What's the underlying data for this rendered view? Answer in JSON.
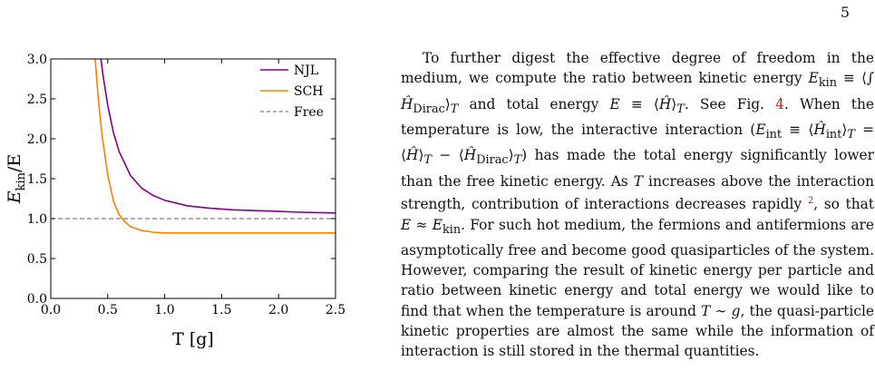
{
  "page": {
    "number": "5"
  },
  "chart_data": {
    "type": "line",
    "xlabel": "T [g]",
    "ylabel": "E_kin/E",
    "xlim": [
      0.0,
      2.5
    ],
    "ylim": [
      0.0,
      3.0
    ],
    "xticks": [
      "0.0",
      "0.5",
      "1.0",
      "1.5",
      "2.0",
      "2.5"
    ],
    "yticks": [
      "0.0",
      "0.5",
      "1.0",
      "1.5",
      "2.0",
      "2.5",
      "3.0"
    ],
    "legend_position": "top-right",
    "series": [
      {
        "name": "NJL",
        "color": "#800080",
        "style": "solid",
        "x": [
          0.44,
          0.46,
          0.5,
          0.55,
          0.6,
          0.7,
          0.8,
          0.9,
          1.0,
          1.2,
          1.4,
          1.6,
          1.8,
          2.0,
          2.2,
          2.5
        ],
        "y": [
          3.0,
          2.78,
          2.42,
          2.08,
          1.84,
          1.54,
          1.38,
          1.29,
          1.23,
          1.16,
          1.13,
          1.11,
          1.1,
          1.09,
          1.08,
          1.07
        ]
      },
      {
        "name": "SCH",
        "color": "#ff8000",
        "style": "solid",
        "x": [
          0.39,
          0.4,
          0.42,
          0.45,
          0.5,
          0.55,
          0.6,
          0.65,
          0.7,
          0.8,
          0.9,
          1.0,
          1.2,
          1.5,
          2.0,
          2.5
        ],
        "y": [
          3.0,
          2.82,
          2.45,
          2.05,
          1.55,
          1.22,
          1.05,
          0.96,
          0.9,
          0.85,
          0.83,
          0.82,
          0.82,
          0.82,
          0.82,
          0.82
        ]
      },
      {
        "name": "Free",
        "color": "#808080",
        "style": "dashed",
        "x": [
          0.0,
          2.5
        ],
        "y": [
          1.0,
          1.0
        ]
      }
    ]
  }
}
